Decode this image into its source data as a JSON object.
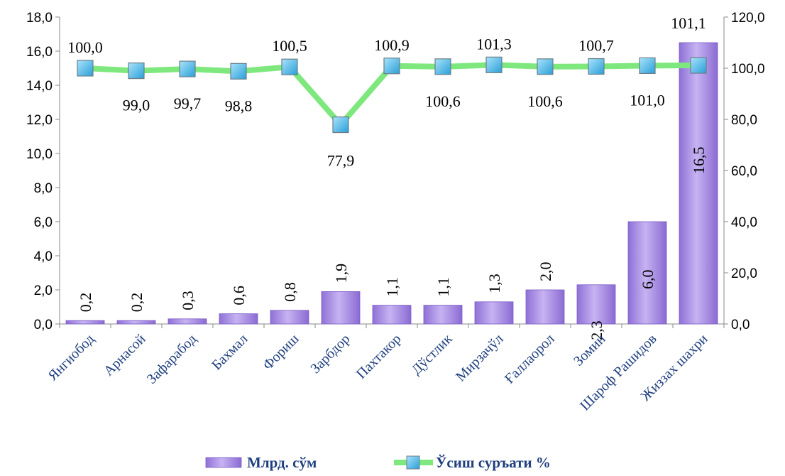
{
  "chart_data": {
    "type": "bar",
    "categories": [
      "Янгиобод",
      "Арнасой",
      "Зафарабод",
      "Бахмал",
      "Фориш",
      "Зарбдор",
      "Пахтакор",
      "Дўстлик",
      "Мирзачўл",
      "Ғаллаорол",
      "Зомин",
      "Шароф Рашидов",
      "Жиззах шахри"
    ],
    "series": [
      {
        "name": "Млрд. сўм",
        "type": "bar",
        "axis": "left",
        "values": [
          0.2,
          0.2,
          0.3,
          0.6,
          0.8,
          1.9,
          1.1,
          1.1,
          1.3,
          2.0,
          2.3,
          6.0,
          16.5
        ],
        "labels": [
          "0,2",
          "0,2",
          "0,3",
          "0,6",
          "0,8",
          "1,9",
          "1,1",
          "1,1",
          "1,3",
          "2,0",
          "2,3",
          "6,0",
          "16,5"
        ],
        "color": "#a98de0"
      },
      {
        "name": "Ўсиш суръати %",
        "type": "line",
        "axis": "right",
        "values": [
          100.0,
          99.0,
          99.7,
          98.8,
          100.5,
          77.9,
          100.9,
          100.6,
          101.3,
          100.6,
          100.7,
          101.0,
          101.1
        ],
        "labels": [
          "100,0",
          "99,0",
          "99,7",
          "98,8",
          "100,5",
          "77,9",
          "100,9",
          "100,6",
          "101,3",
          "100,6",
          "100,7",
          "101,0",
          "101,1"
        ],
        "color": "#7ee87e",
        "marker_color": "#4fb8ea"
      }
    ],
    "y_left": {
      "range": [
        0,
        18
      ],
      "ticks": [
        "0,0",
        "2,0",
        "4,0",
        "6,0",
        "8,0",
        "10,0",
        "12,0",
        "14,0",
        "16,0",
        "18,0"
      ]
    },
    "y_right": {
      "range": [
        0,
        120
      ],
      "ticks": [
        "0,0",
        "20,0",
        "40,0",
        "60,0",
        "80,0",
        "100,0",
        "120,0"
      ]
    },
    "title": "",
    "xlabel": "",
    "ylabel": "",
    "grid": false,
    "legend_position": "bottom"
  }
}
